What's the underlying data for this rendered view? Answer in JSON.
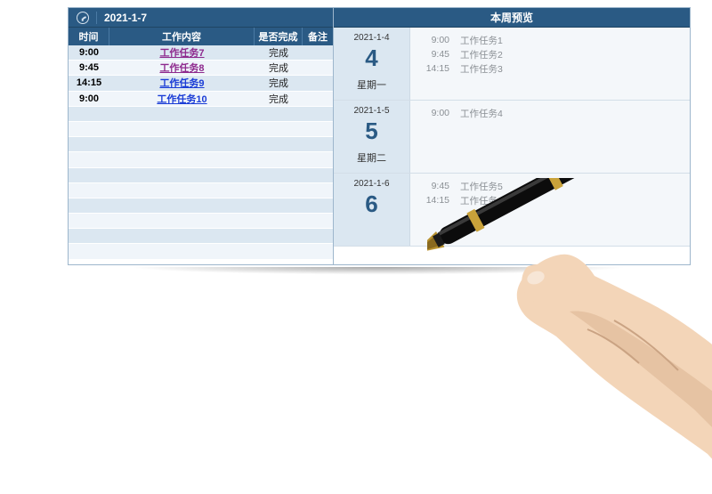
{
  "colors": {
    "header_bg": "#2a5a84",
    "header_text": "#ffffff",
    "row_alt0": "#dbe7f1",
    "row_alt1": "#f0f5fa",
    "day_left_bg": "#dbe7f1",
    "day_right_bg": "#f4f7fa",
    "day_num_color": "#2a5a84",
    "border": "#9db6cc",
    "task_colors": [
      "#8e2a8e",
      "#8e2a8e",
      "#1a3cd6",
      "#1a3cd6"
    ]
  },
  "left": {
    "date": "2021-1-7",
    "columns": {
      "time": "时间",
      "task": "工作内容",
      "done": "是否完成",
      "note": "备注"
    },
    "rows": [
      {
        "time": "9:00",
        "task": "工作任务7",
        "done": "完成",
        "color": "#8e2a8e"
      },
      {
        "time": "9:45",
        "task": "工作任务8",
        "done": "完成",
        "color": "#8e2a8e"
      },
      {
        "time": "14:15",
        "task": "工作任务9",
        "done": "完成",
        "color": "#1a3cd6"
      },
      {
        "time": "9:00",
        "task": "工作任务10",
        "done": "完成",
        "color": "#1a3cd6"
      }
    ],
    "blank_row_count": 10
  },
  "right": {
    "title": "本周预览",
    "days": [
      {
        "date": "2021-1-4",
        "num": "4",
        "name": "星期一",
        "tasks": [
          {
            "time": "9:00",
            "name": "工作任务1"
          },
          {
            "time": "9:45",
            "name": "工作任务2"
          },
          {
            "time": "14:15",
            "name": "工作任务3"
          }
        ]
      },
      {
        "date": "2021-1-5",
        "num": "5",
        "name": "星期二",
        "tasks": [
          {
            "time": "9:00",
            "name": "工作任务4"
          }
        ]
      },
      {
        "date": "2021-1-6",
        "num": "6",
        "name": "",
        "tasks": [
          {
            "time": "9:45",
            "name": "工作任务5"
          },
          {
            "time": "14:15",
            "name": "工作任务6"
          }
        ]
      }
    ]
  }
}
